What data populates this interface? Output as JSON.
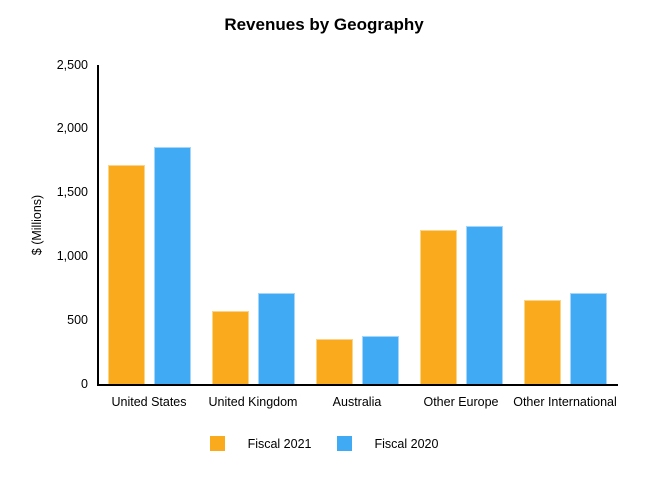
{
  "chart_data": {
    "type": "bar",
    "title": "Revenues by Geography",
    "xlabel": "",
    "ylabel": "$ (Millions)",
    "categories": [
      "United States",
      "United Kingdom",
      "Australia",
      "Other Europe",
      "Other International"
    ],
    "series": [
      {
        "name": "Fiscal 2021",
        "color": "#F9AB1D",
        "edge_color": "#FCD488",
        "values": [
          1715,
          575,
          355,
          1205,
          655
        ]
      },
      {
        "name": "Fiscal 2020",
        "color": "#41AAF5",
        "edge_color": "#A3D6FA",
        "values": [
          1855,
          715,
          375,
          1235,
          715
        ]
      }
    ],
    "ylim": [
      0,
      2500
    ],
    "yticks": [
      0,
      500,
      1000,
      1500,
      2000,
      2500
    ],
    "ytick_labels": [
      "0",
      "500",
      "1,000",
      "1,500",
      "2,000",
      "2,500"
    ],
    "grid": false,
    "legend_position": "bottom-center"
  },
  "colors": {
    "background": "#ffffff",
    "axis": "#000000",
    "text": "#000000",
    "fiscal_2021": "#F9AB1D",
    "fiscal_2020": "#41AAF5"
  }
}
